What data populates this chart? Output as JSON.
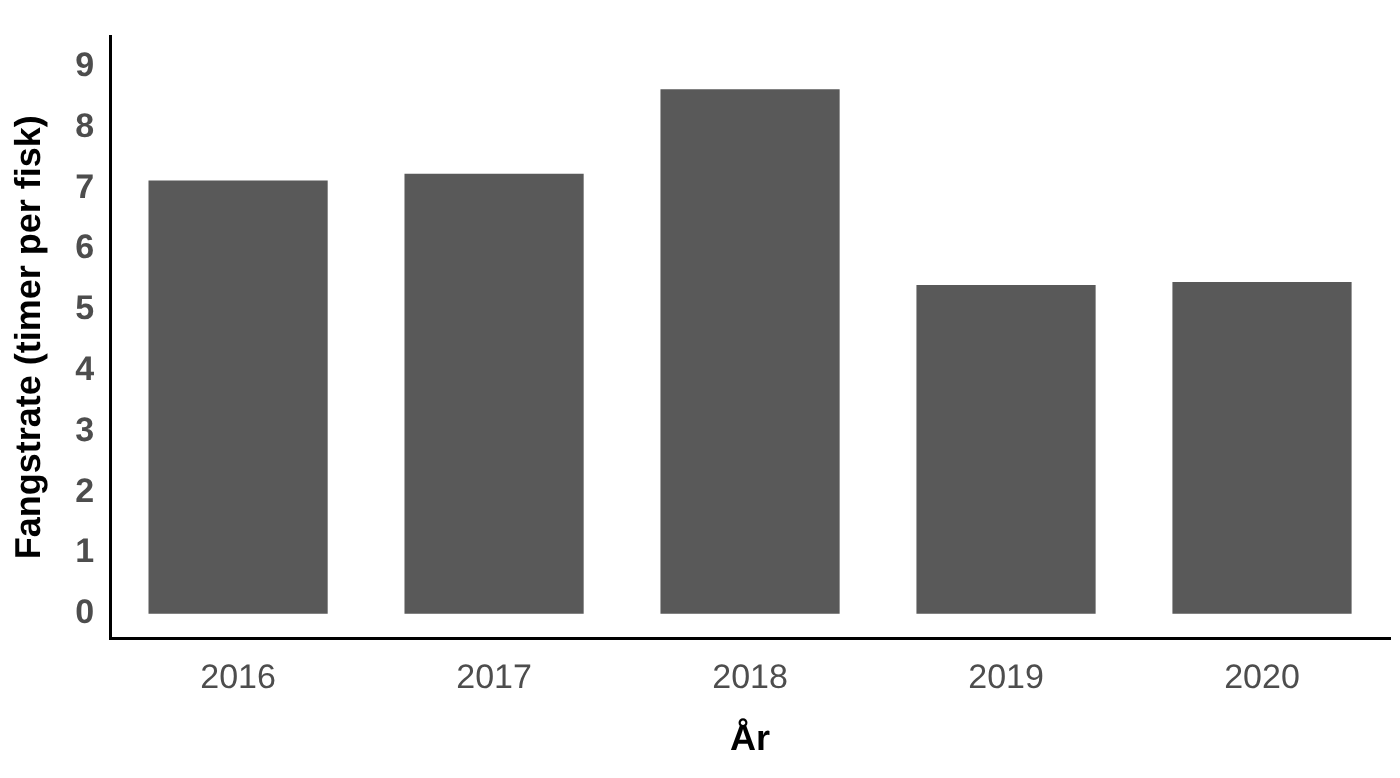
{
  "chart_data": {
    "type": "bar",
    "xlabel": "År",
    "ylabel": "Fangstrate (timer per fisk)",
    "categories": [
      "2016",
      "2017",
      "2018",
      "2019",
      "2020"
    ],
    "values": [
      7.13,
      7.24,
      8.63,
      5.41,
      5.46
    ],
    "color": "#595959",
    "ylim": [
      -0.4,
      9.5
    ],
    "yticks": [
      0,
      1,
      2,
      3,
      4,
      5,
      6,
      7,
      8,
      9
    ],
    "grid": false,
    "legend": false
  }
}
